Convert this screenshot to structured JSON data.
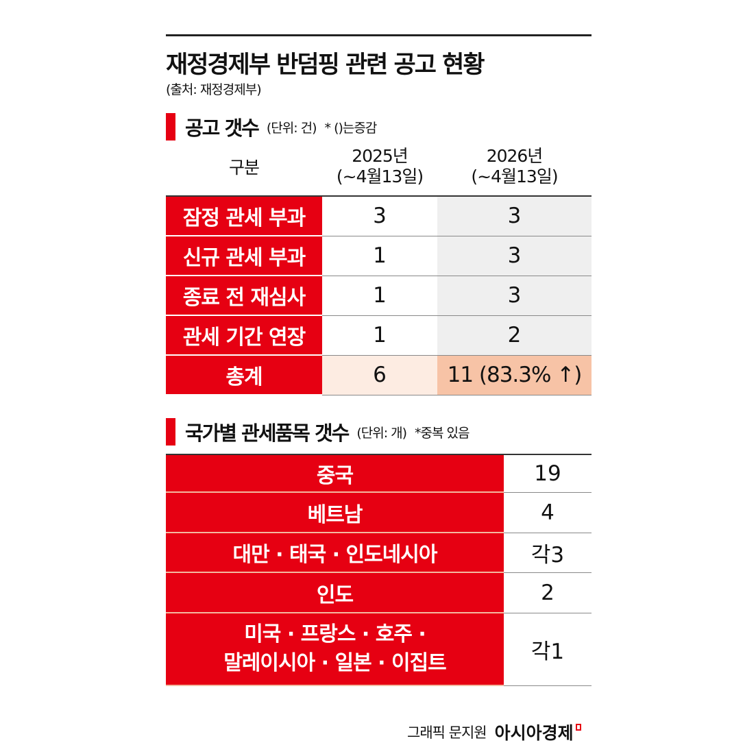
{
  "title": "재정경제부 반덤핑 관련 공고 현황",
  "source": "(출처: 재정경제부)",
  "section1": {
    "heading": "공고 갯수",
    "unit": "(단위: 건)",
    "note": "* ()는증감",
    "headers": [
      "구분",
      "2025년\n(~4월13일)",
      "2026년\n(~4월13일)"
    ],
    "header_lines": {
      "c2a": "2025년",
      "c2b": "(~4월13일)",
      "c3a": "2026년",
      "c3b": "(~4월13일)"
    },
    "rows": [
      {
        "label": "잠정 관세 부과",
        "y2025": "3",
        "y2026": "3"
      },
      {
        "label": "신규 관세 부과",
        "y2025": "1",
        "y2026": "3"
      },
      {
        "label": "종료 전 재심사",
        "y2025": "1",
        "y2026": "3"
      },
      {
        "label": "관세 기간 연장",
        "y2025": "1",
        "y2026": "2"
      },
      {
        "label": "총계",
        "y2025": "6",
        "y2026": "11 (83.3% ↑)"
      }
    ]
  },
  "section2": {
    "heading": "국가별 관세품목 갯수",
    "unit": "(단위: 개)",
    "note": "*중복 있음",
    "rows": [
      {
        "label": "중국",
        "value": "19"
      },
      {
        "label": "베트남",
        "value": "4"
      },
      {
        "label": "대만 · 태국 · 인도네시아",
        "value": "각3"
      },
      {
        "label": "인도",
        "value": "2"
      },
      {
        "label": "미국 · 프랑스 · 호주 ·",
        "label2": "말레이시아 · 일본 · 이집트",
        "value": "각1"
      }
    ]
  },
  "credit": {
    "byline": "그래픽 문지원",
    "brand": "아시아경제"
  },
  "colors": {
    "accent": "#e60012",
    "total_2025": "#fdece2",
    "total_2026": "#f7c3a6"
  }
}
